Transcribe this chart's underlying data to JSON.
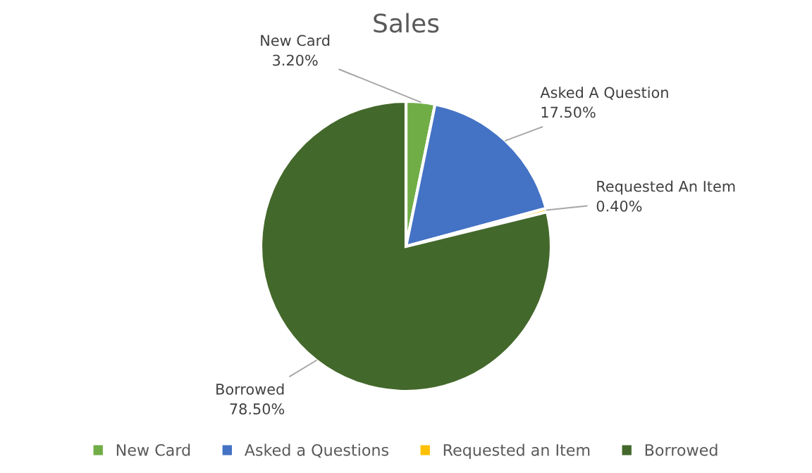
{
  "chart_data": {
    "type": "pie",
    "title": "Sales",
    "categories": [
      "New Card",
      "Asked a Questions",
      "Requested an Item",
      "Borrowed"
    ],
    "values": [
      3.2,
      17.5,
      0.4,
      78.5
    ],
    "colors": [
      "#70ad47",
      "#4472c4",
      "#ffc000",
      "#43682b"
    ],
    "value_labels": [
      "New Card\n3.20%",
      "Asked A Question\n17.50%",
      "Requested An Item\n0.40%",
      "Borrowed\n78.50%"
    ],
    "legend": "bottom"
  }
}
